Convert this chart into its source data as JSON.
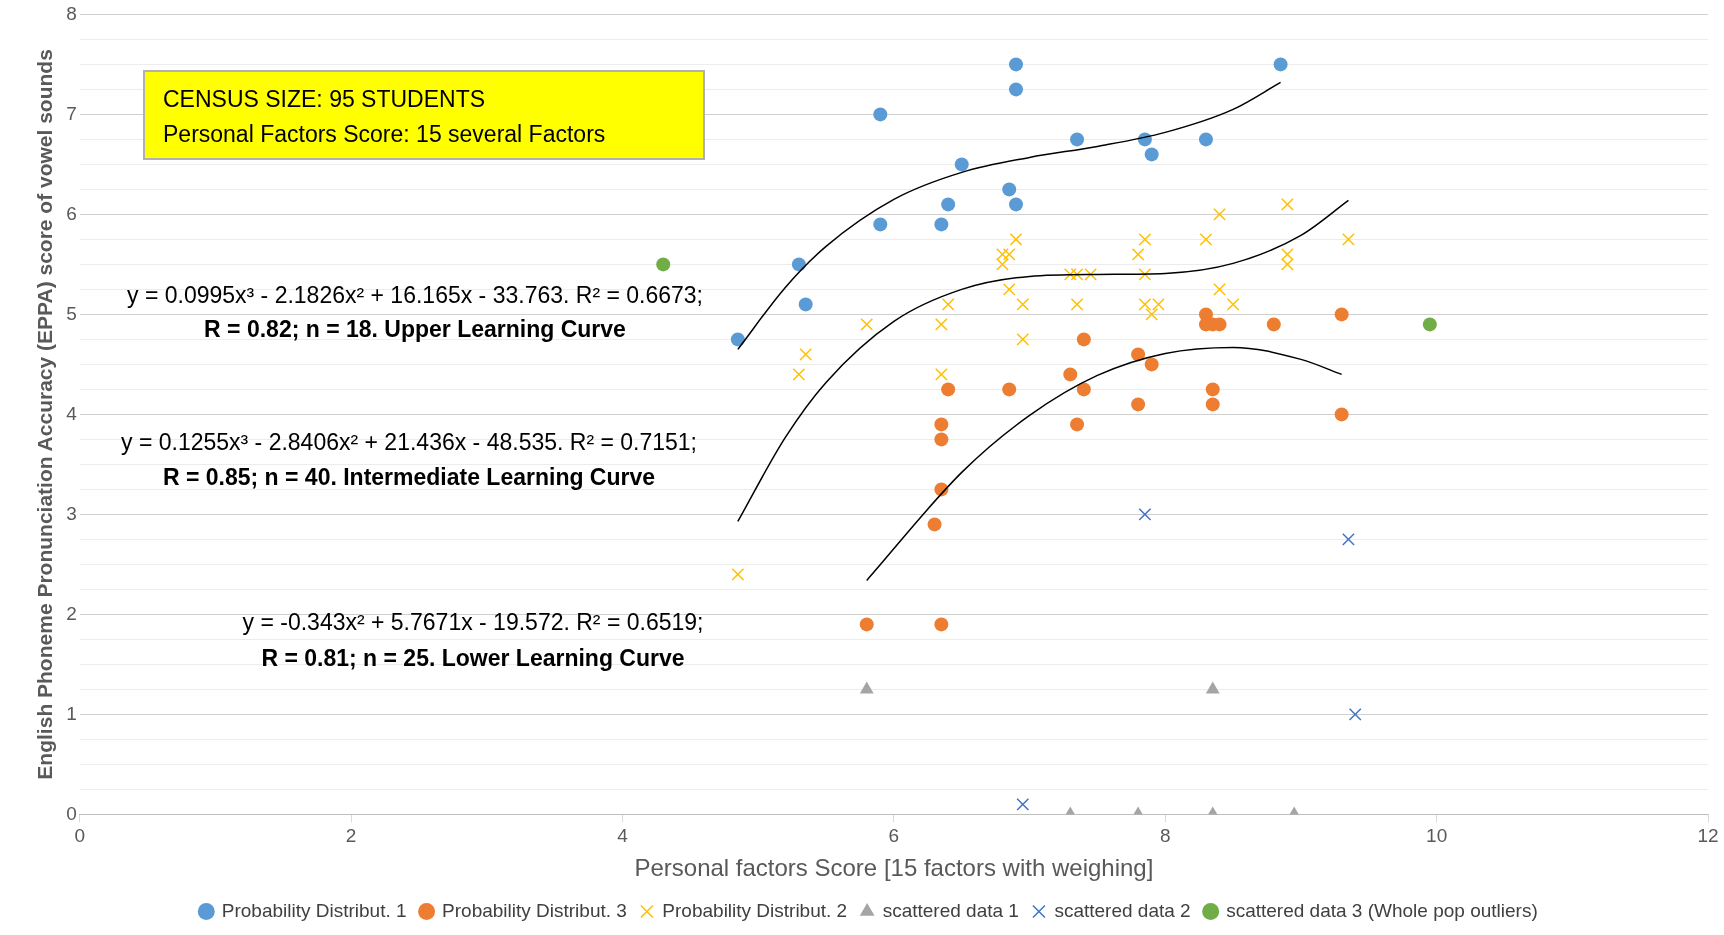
{
  "chart_data": {
    "type": "scatter",
    "xlabel": "Personal factors Score [15 factors with weighing]",
    "ylabel": "English Phoneme Pronunciation Accuracy (EPPA) score of vowel sounds",
    "xlim": [
      0,
      12
    ],
    "xticks": [
      0,
      2,
      4,
      6,
      8,
      10,
      12
    ],
    "ylim": [
      0,
      8
    ],
    "yticks": [
      0,
      {
        "value": 0.25,
        "label": null
      },
      {
        "value": 0.5,
        "label": null
      },
      {
        "value": 0.75,
        "label": null
      },
      1,
      {
        "value": 1.25,
        "label": null
      },
      {
        "value": 1.5,
        "label": null
      },
      {
        "value": 1.75,
        "label": null
      },
      2,
      {
        "value": 2.25,
        "label": null
      },
      {
        "value": 2.5,
        "label": null
      },
      {
        "value": 2.75,
        "label": null
      },
      3,
      {
        "value": 3.25,
        "label": null
      },
      {
        "value": 3.5,
        "label": null
      },
      {
        "value": 3.75,
        "label": null
      },
      4,
      {
        "value": 4.25,
        "label": null
      },
      {
        "value": 4.5,
        "label": null
      },
      {
        "value": 4.75,
        "label": null
      },
      5,
      {
        "value": 5.25,
        "label": null
      },
      {
        "value": 5.5,
        "label": null
      },
      {
        "value": 5.75,
        "label": null
      },
      6,
      {
        "value": 6.25,
        "label": null
      },
      {
        "value": 6.5,
        "label": null
      },
      {
        "value": 6.75,
        "label": null
      },
      7,
      {
        "value": 7.25,
        "label": null
      },
      {
        "value": 7.5,
        "label": null
      },
      {
        "value": 7.75,
        "label": null
      },
      8
    ],
    "grid": "y",
    "legend": "bottom",
    "series": [
      {
        "name": "Probability Distribut. 1",
        "color": "#5b9bd5",
        "marker": "circle",
        "x": [
          4.85,
          5.3,
          5.35,
          5.9,
          5.9,
          6.35,
          6.4,
          6.5,
          6.85,
          6.9,
          6.9,
          6.9,
          7.35,
          7.85,
          7.9,
          8.3,
          8.85
        ],
        "values": [
          4.75,
          5.5,
          5.1,
          7.0,
          5.9,
          5.9,
          6.1,
          6.5,
          6.25,
          6.1,
          7.25,
          7.5,
          6.75,
          6.75,
          6.6,
          6.75,
          7.5
        ]
      },
      {
        "name": "Probability Distribut. 3",
        "color": "#ed7d31",
        "marker": "circle",
        "x": [
          5.8,
          6.35,
          6.3,
          6.35,
          6.35,
          6.35,
          6.4,
          6.85,
          7.3,
          7.35,
          7.4,
          7.4,
          7.8,
          7.8,
          7.9,
          8.3,
          8.3,
          8.35,
          8.4,
          8.35,
          8.35,
          8.8,
          9.3,
          9.3
        ],
        "values": [
          1.9,
          1.9,
          2.9,
          3.25,
          3.75,
          3.9,
          4.25,
          4.25,
          4.4,
          3.9,
          4.25,
          4.75,
          4.6,
          4.1,
          4.5,
          5.0,
          4.9,
          4.9,
          4.9,
          4.25,
          4.1,
          4.9,
          5.0,
          4.0
        ]
      },
      {
        "name": "Probability Distribut. 2",
        "color": "#ffc000",
        "marker": "cross",
        "x": [
          4.85,
          5.3,
          5.35,
          5.8,
          6.35,
          6.35,
          6.4,
          6.8,
          6.8,
          6.85,
          6.85,
          6.9,
          6.95,
          6.95,
          7.3,
          7.35,
          7.45,
          7.35,
          7.8,
          7.85,
          7.85,
          7.85,
          7.9,
          7.95,
          8.3,
          8.4,
          8.4,
          8.5,
          8.9,
          8.9,
          8.9,
          9.35
        ],
        "values": [
          2.4,
          4.4,
          4.6,
          4.9,
          4.9,
          4.4,
          5.1,
          5.6,
          5.5,
          5.25,
          5.6,
          5.75,
          5.1,
          4.75,
          5.4,
          5.4,
          5.4,
          5.1,
          5.6,
          5.75,
          5.4,
          5.1,
          5.0,
          5.1,
          5.75,
          6.0,
          5.25,
          5.1,
          6.1,
          5.6,
          5.5,
          5.75
        ]
      },
      {
        "name": "scattered data 1",
        "color": "#a5a5a5",
        "marker": "triangle",
        "x": [
          5.8,
          7.3,
          7.8,
          8.35,
          8.35,
          8.95
        ],
        "values": [
          1.25,
          0,
          0,
          1.25,
          0,
          0
        ]
      },
      {
        "name": "scattered data 2",
        "color": "#4472c4",
        "marker": "cross",
        "x": [
          6.95,
          7.85,
          9.35,
          9.4
        ],
        "values": [
          0.1,
          3.0,
          2.75,
          1.0
        ]
      },
      {
        "name": "scattered data 3 (Whole pop outliers)",
        "color": "#70ad47",
        "marker": "circle",
        "x": [
          4.3,
          9.95
        ],
        "values": [
          5.5,
          4.9
        ]
      },
      {
        "type": "line",
        "color": "#000000",
        "marker": "none",
        "x": [
          4.85,
          5.2,
          5.5,
          6,
          6.5,
          7,
          7.5,
          8,
          8.5,
          8.85
        ],
        "values": [
          4.65,
          5.27,
          5.68,
          6.15,
          6.42,
          6.57,
          6.68,
          6.82,
          7.05,
          7.32
        ]
      },
      {
        "type": "line",
        "color": "#000000",
        "marker": "none",
        "x": [
          4.85,
          5.2,
          5.5,
          6,
          6.5,
          7,
          7.5,
          8,
          8.5,
          9,
          9.35
        ],
        "values": [
          2.93,
          3.77,
          4.32,
          4.93,
          5.25,
          5.38,
          5.4,
          5.41,
          5.51,
          5.79,
          6.14
        ]
      },
      {
        "type": "line",
        "color": "#000000",
        "marker": "none",
        "x": [
          5.8,
          6.5,
          7,
          7.5,
          8,
          8.5,
          9,
          9.3
        ],
        "values": [
          2.34,
          3.42,
          3.99,
          4.39,
          4.61,
          4.67,
          4.55,
          4.4
        ]
      }
    ],
    "annotations": [
      "CENSUS SIZE: 95 STUDENTS",
      "Personal Factors Score: 15 several Factors",
      "y = 0.0995x³ - 2.1826x² + 16.165x - 33.763.  R² = 0.6673;",
      "R = 0.82;  n = 18.  Upper Learning Curve",
      "y = 0.1255x³ - 2.8406x² + 21.436x - 48.535.  R² = 0.7151;",
      "R = 0.85;  n = 40.  Intermediate Learning Curve",
      "y = -0.343x² + 5.7671x - 19.572.  R² = 0.6519;",
      "R = 0.81; n = 25.  Lower Learning Curve"
    ]
  }
}
